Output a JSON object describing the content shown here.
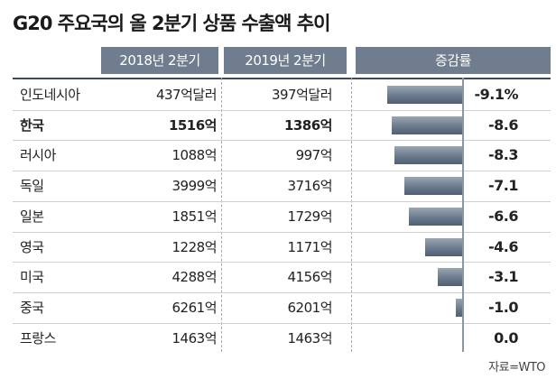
{
  "title": "G20 주요국의 올 2분기 상품 수출액 추이",
  "headers": {
    "col2018": "2018년 2분기",
    "col2019": "2019년 2분기",
    "colChange": "증감률"
  },
  "source": "자료=WTO",
  "chart_data": {
    "type": "bar",
    "title": "G20 주요국의 올 2분기 상품 수출액 추이",
    "orientation": "horizontal",
    "categories": [
      "인도네시아",
      "한국",
      "러시아",
      "독일",
      "일본",
      "영국",
      "미국",
      "중국",
      "프랑스"
    ],
    "values": [
      -9.1,
      -8.6,
      -8.3,
      -7.1,
      -6.6,
      -4.6,
      -3.1,
      -1.0,
      0.0
    ],
    "value_labels": [
      "-9.1%",
      "-8.6",
      "-8.3",
      "-7.1",
      "-6.6",
      "-4.6",
      "-3.1",
      "-1.0",
      "0.0"
    ],
    "ylabel": "증감률",
    "xlim": [
      -10,
      0
    ],
    "table": {
      "columns": [
        "2018년 2분기",
        "2019년 2분기",
        "증감률"
      ],
      "rows": [
        {
          "country": "인도네시아",
          "y2018": "437억달러",
          "y2019": "397억달러",
          "change": "-9.1%",
          "highlight": false
        },
        {
          "country": "한국",
          "y2018": "1516억",
          "y2019": "1386억",
          "change": "-8.6",
          "highlight": true
        },
        {
          "country": "러시아",
          "y2018": "1088억",
          "y2019": "997억",
          "change": "-8.3",
          "highlight": false
        },
        {
          "country": "독일",
          "y2018": "3999억",
          "y2019": "3716억",
          "change": "-7.1",
          "highlight": false
        },
        {
          "country": "일본",
          "y2018": "1851억",
          "y2019": "1729억",
          "change": "-6.6",
          "highlight": false
        },
        {
          "country": "영국",
          "y2018": "1228억",
          "y2019": "1171억",
          "change": "-4.6",
          "highlight": false
        },
        {
          "country": "미국",
          "y2018": "4288억",
          "y2019": "4156억",
          "change": "-3.1",
          "highlight": false
        },
        {
          "country": "중국",
          "y2018": "6261억",
          "y2019": "6201억",
          "change": "-1.0",
          "highlight": false
        },
        {
          "country": "프랑스",
          "y2018": "1463억",
          "y2019": "1463억",
          "change": "0.0",
          "highlight": false
        }
      ]
    }
  },
  "colors": {
    "header_bg": "#6f7d8e",
    "bar": "#6b7a8c",
    "rule": "#3d4a5a"
  }
}
